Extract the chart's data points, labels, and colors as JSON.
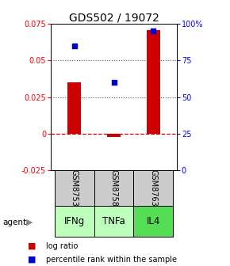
{
  "title": "GDS502 / 19072",
  "samples": [
    "GSM8753",
    "GSM8758",
    "GSM8763"
  ],
  "agents": [
    "IFNg",
    "TNFa",
    "IL4"
  ],
  "log_ratios": [
    0.035,
    -0.002,
    0.071
  ],
  "percentile_ranks": [
    85,
    60,
    95
  ],
  "left_ylim": [
    -0.025,
    0.075
  ],
  "left_yticks": [
    -0.025,
    0,
    0.025,
    0.05,
    0.075
  ],
  "left_yticklabels": [
    "-0.025",
    "0",
    "0.025",
    "0.05",
    "0.075"
  ],
  "right_ylim": [
    0,
    100
  ],
  "right_yticks": [
    0,
    25,
    50,
    75,
    100
  ],
  "right_yticklabels": [
    "0",
    "25",
    "50",
    "75",
    "100%"
  ],
  "bar_color": "#cc0000",
  "dot_color": "#0000cc",
  "zero_line_color": "#cc0000",
  "dotted_line_color": "#555555",
  "agent_colors": [
    "#bbffbb",
    "#bbffbb",
    "#55dd55"
  ],
  "sample_bg_color": "#cccccc",
  "bar_width": 0.35,
  "title_fontsize": 10,
  "tick_fontsize": 7,
  "legend_fontsize": 7,
  "agent_label_fontsize": 8.5,
  "sample_label_fontsize": 7
}
